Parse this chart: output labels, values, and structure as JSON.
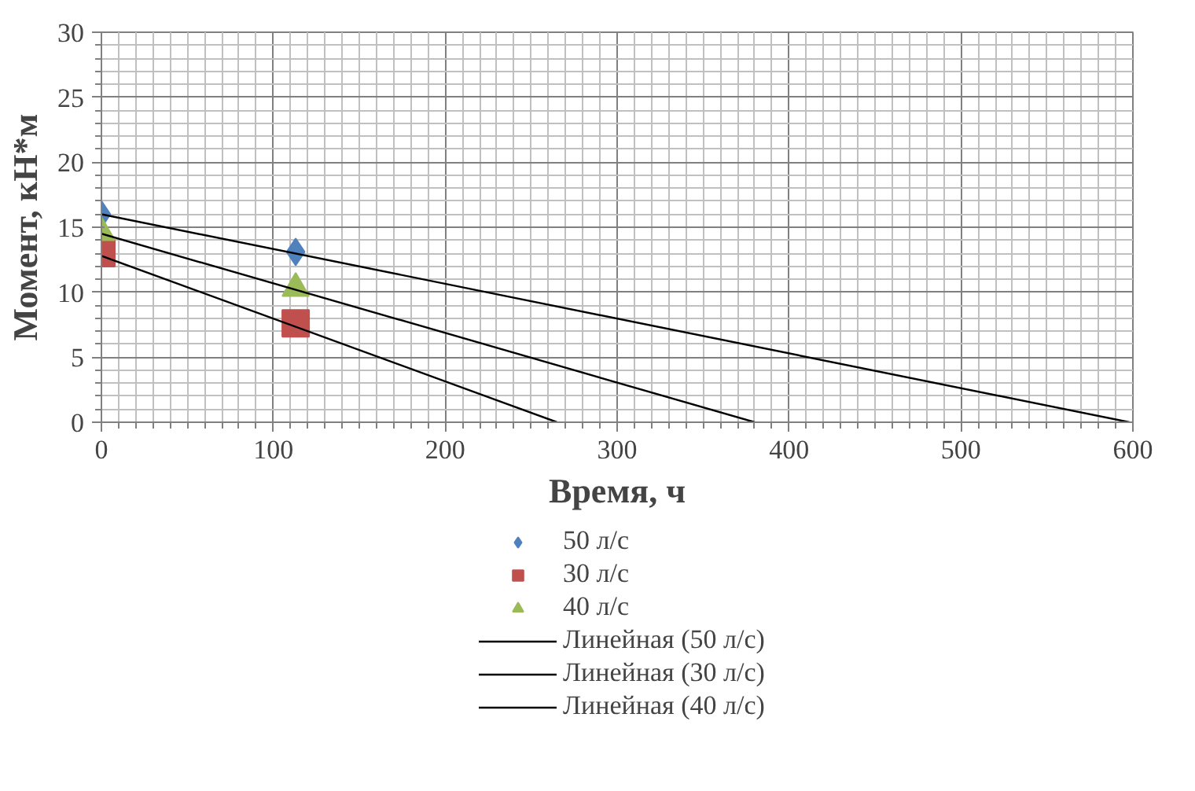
{
  "chart_data": {
    "type": "scatter",
    "xlabel": "Время, ч",
    "ylabel": "Момент, кН*м",
    "xlim": [
      0,
      600
    ],
    "ylim": [
      0,
      30
    ],
    "xticks": [
      0,
      100,
      200,
      300,
      400,
      500,
      600
    ],
    "yticks": [
      0,
      5,
      10,
      15,
      20,
      25,
      30
    ],
    "grid": true,
    "legend": "bottom",
    "series": [
      {
        "name": "50 л/с",
        "color": "#4f81bd",
        "marker": "diamond",
        "x": [
          0,
          113
        ],
        "values": [
          16,
          13.1
        ]
      },
      {
        "name": "30 л/с",
        "color": "#c0504d",
        "marker": "square",
        "x": [
          0,
          113
        ],
        "values": [
          13,
          7.6
        ]
      },
      {
        "name": "40 л/с",
        "color": "#9bbb59",
        "marker": "triangle",
        "x": [
          0,
          113
        ],
        "values": [
          14.6,
          10.3
        ]
      },
      {
        "name": "Линейная (50 л/с)",
        "type": "line",
        "color": "#000000",
        "x": [
          0,
          598
        ],
        "values": [
          16,
          0
        ]
      },
      {
        "name": "Линейная (30 л/с)",
        "type": "line",
        "color": "#000000",
        "x": [
          0,
          265
        ],
        "values": [
          12.8,
          0
        ]
      },
      {
        "name": "Линейная (40 л/с)",
        "type": "line",
        "color": "#000000",
        "x": [
          0,
          380
        ],
        "values": [
          14.5,
          0
        ]
      }
    ]
  }
}
